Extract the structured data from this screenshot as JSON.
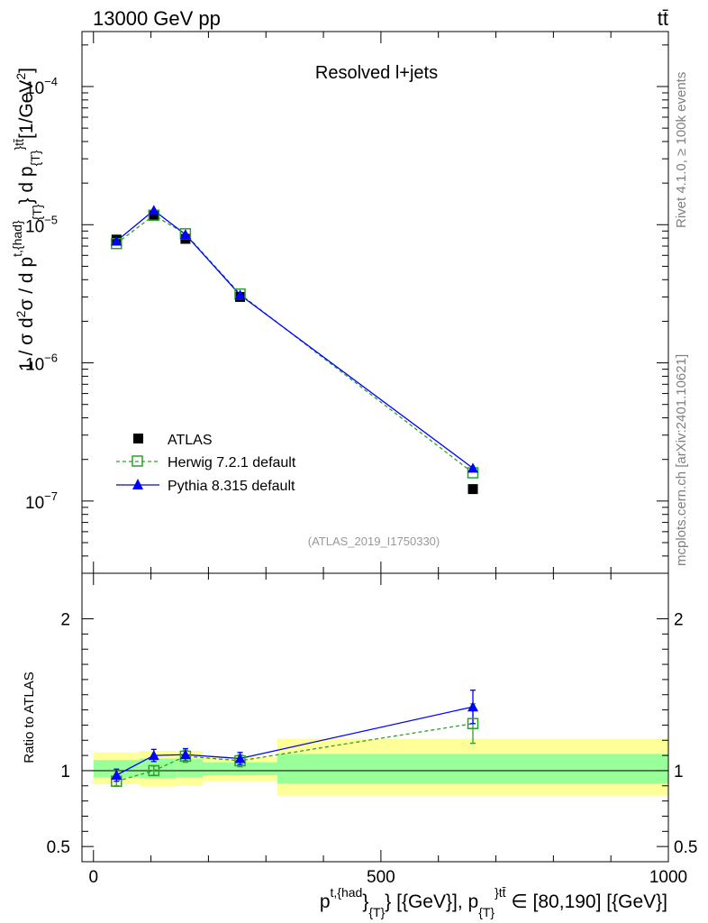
{
  "header": {
    "energy": "13000 GeV pp",
    "process": "tt̄"
  },
  "side": {
    "rivet": "Rivet 4.1.0, ≥ 100k events",
    "source": "mcplots.cern.ch [arXiv:2401.10621]"
  },
  "colors": {
    "atlas": "#000000",
    "herwig": "#2ca02c",
    "pythia": "#0000ff",
    "band_inner": "#99ff99",
    "band_outer": "#ffff99"
  },
  "chart_data": [
    {
      "type": "scatter",
      "title": "Resolved l+jets",
      "analysis": "(ATLAS_2019_I1750330)",
      "ylabel": {
        "base": "1 / σ d",
        "exp2": "2",
        "rest": "σ / d p",
        "sup": "t,{had}",
        "sub": "{T}",
        "tail": "} d p",
        "sub2": "{T}",
        "sup2": "}tt̄",
        "unit_open": "[1/GeV",
        "unit_exp": "2",
        "unit_close": "]"
      },
      "yscale": "log",
      "ylim": [
        3e-08,
        0.00025
      ],
      "xlim": [
        -20,
        1000
      ],
      "yticks": [
        {
          "v": 1e-07,
          "mant": "10",
          "exp": "−7"
        },
        {
          "v": 1e-06,
          "mant": "10",
          "exp": "−6"
        },
        {
          "v": 1e-05,
          "mant": "10",
          "exp": "−5"
        },
        {
          "v": 0.0001,
          "mant": "10",
          "exp": "−4"
        }
      ],
      "legend": {
        "position": "bottom-left",
        "entries": [
          "ATLAS",
          "Herwig 7.2.1 default",
          "Pythia 8.315 default"
        ]
      },
      "series": [
        {
          "name": "ATLAS",
          "marker": "square-filled",
          "x": [
            40,
            105,
            160,
            255,
            660
          ],
          "y": [
            7.8e-06,
            1.18e-05,
            7.9e-06,
            3e-06,
            1.22e-07
          ]
        },
        {
          "name": "Herwig 7.2.1 default",
          "marker": "square-open",
          "line": "dashed",
          "x": [
            40,
            105,
            160,
            255,
            660
          ],
          "y": [
            7.3e-06,
            1.17e-05,
            8.6e-06,
            3.15e-06,
            1.6e-07
          ]
        },
        {
          "name": "Pythia 8.315 default",
          "marker": "triangle",
          "line": "solid",
          "x": [
            40,
            105,
            160,
            255,
            660
          ],
          "y": [
            7.6e-06,
            1.27e-05,
            8.5e-06,
            3.1e-06,
            1.73e-07
          ]
        }
      ]
    },
    {
      "type": "scatter",
      "ylabel": "Ratio to ATLAS",
      "ylim": [
        0.4,
        2.3
      ],
      "xlim": [
        -20,
        1000
      ],
      "yticks": [
        {
          "v": 0.5,
          "label": "0.5"
        },
        {
          "v": 1,
          "label": "1"
        },
        {
          "v": 2,
          "label": "2"
        }
      ],
      "xticks": [
        {
          "v": 0,
          "label": "0"
        },
        {
          "v": 500,
          "label": "500"
        },
        {
          "v": 1000,
          "label": "1000"
        }
      ],
      "xlabel": {
        "p": "p",
        "sup": "t,{had",
        "close": "}",
        "sub": "{T}",
        "mid": "} [{GeV}], p",
        "sub2": "{T}",
        "sup2": "}tt̄",
        "range": " ∈ [80,190] [{GeV}]"
      },
      "bands": [
        {
          "x0": 0,
          "x1": 80,
          "inner": [
            0.955,
            1.07
          ],
          "outer": [
            0.91,
            1.12
          ]
        },
        {
          "x0": 80,
          "x1": 145,
          "inner": [
            0.95,
            1.08
          ],
          "outer": [
            0.895,
            1.13
          ]
        },
        {
          "x0": 145,
          "x1": 190,
          "inner": [
            0.955,
            1.075
          ],
          "outer": [
            0.9,
            1.13
          ]
        },
        {
          "x0": 190,
          "x1": 320,
          "inner": [
            0.97,
            1.055
          ],
          "outer": [
            0.93,
            1.09
          ]
        },
        {
          "x0": 320,
          "x1": 1000,
          "inner": [
            0.915,
            1.11
          ],
          "outer": [
            0.835,
            1.21
          ]
        }
      ],
      "series": [
        {
          "name": "Herwig 7.2.1 default",
          "line": "dashed",
          "x": [
            40,
            105,
            160,
            255,
            660
          ],
          "y": [
            0.93,
            1.0,
            1.095,
            1.065,
            1.31
          ],
          "err": [
            0.03,
            0.03,
            0.04,
            0.04,
            0.13
          ]
        },
        {
          "name": "Pythia 8.315 default",
          "line": "solid",
          "x": [
            40,
            105,
            160,
            255,
            660
          ],
          "y": [
            0.97,
            1.1,
            1.105,
            1.08,
            1.42
          ],
          "err": [
            0.04,
            0.04,
            0.04,
            0.04,
            0.11
          ]
        }
      ]
    }
  ]
}
